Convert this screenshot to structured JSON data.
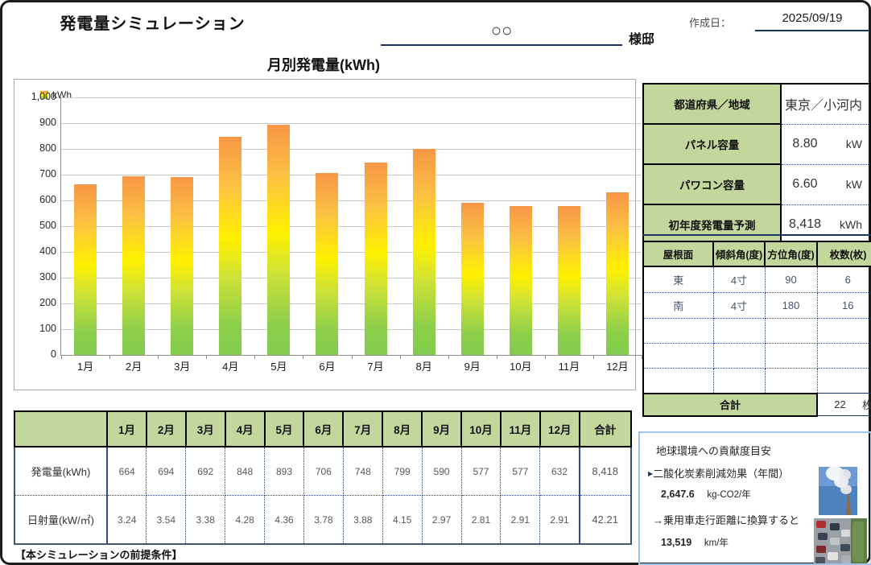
{
  "page": {
    "banner_title": "発電量シミュレーション",
    "customer_name": "○○",
    "customer_suffix": "様邸",
    "created_label": "作成日：",
    "created_date": "2025/09/19",
    "footer_note": "【本シミュレーションの前提条件】"
  },
  "chart": {
    "title": "月別発電量(kWh)",
    "legend_label": "kWh"
  },
  "chart_data": {
    "type": "bar",
    "title": "月別発電量(kWh)",
    "categories": [
      "1月",
      "2月",
      "3月",
      "4月",
      "5月",
      "6月",
      "7月",
      "8月",
      "9月",
      "10月",
      "11月",
      "12月"
    ],
    "values": [
      664,
      694,
      692,
      848,
      893,
      706,
      748,
      799,
      590,
      577,
      577,
      632
    ],
    "ylim": [
      0,
      1000
    ],
    "ytick_step": 100,
    "grid": true,
    "legend": [
      "kWh"
    ],
    "legend_position": "top-left",
    "bar_gradient": [
      "#F79646",
      "#FFF100",
      "#8DCF4B"
    ]
  },
  "info_table": {
    "rows": [
      {
        "label": "都道府県／地域",
        "value": "東京／小河内",
        "unit": ""
      },
      {
        "label": "パネル容量",
        "value": "8.80",
        "unit": "kW"
      },
      {
        "label": "パワコン容量",
        "value": "6.60",
        "unit": "kW"
      },
      {
        "label": "初年度発電量予測",
        "value": "8,418",
        "unit": "kWh"
      }
    ]
  },
  "roof_table": {
    "headers": [
      "屋根面",
      "傾斜角(度)",
      "方位角(度)",
      "枚数(枚)"
    ],
    "rows": [
      [
        "東",
        "4寸",
        "90",
        "6"
      ],
      [
        "南",
        "4寸",
        "180",
        "16"
      ],
      [
        "",
        "",
        "",
        ""
      ],
      [
        "",
        "",
        "",
        ""
      ],
      [
        "",
        "",
        "",
        ""
      ]
    ],
    "total_label": "合計",
    "total_value": "22",
    "total_unit": "枚"
  },
  "monthly_table": {
    "corner": "",
    "month_headers": [
      "1月",
      "2月",
      "3月",
      "4月",
      "5月",
      "6月",
      "7月",
      "8月",
      "9月",
      "10月",
      "11月",
      "12月",
      "合計"
    ],
    "rows": [
      {
        "label": "発電量(kWh)",
        "values": [
          "664",
          "694",
          "692",
          "848",
          "893",
          "706",
          "748",
          "799",
          "590",
          "577",
          "577",
          "632"
        ],
        "total": "8,418"
      },
      {
        "label": "日射量(kW/㎡)",
        "values": [
          "3.24",
          "3.54",
          "3.38",
          "4.28",
          "4.36",
          "3.78",
          "3.88",
          "4.15",
          "2.97",
          "2.81",
          "2.91",
          "2.91"
        ],
        "total": "42.21"
      }
    ]
  },
  "environment": {
    "title": "地球環境への貢献度目安",
    "co2_label": "二酸化炭素削減効果（年間）",
    "co2_value": "2,647.6",
    "co2_unit": "kg-CO2/年",
    "car_label": "→乗用車走行距離に換算すると",
    "car_value": "13,519",
    "car_unit": "km/年"
  },
  "colors": {
    "header_green": "#C3D69B",
    "outer_border": "#1c1c1c",
    "navy_accent": "#17375E",
    "dotted_blue": "#2E4C8F",
    "env_border": "#9DC3E6",
    "grid_gray": "#c9c9c9",
    "bar_top": "#F79646",
    "bar_mid": "#FFF100",
    "bar_bottom": "#8DCF4B"
  }
}
